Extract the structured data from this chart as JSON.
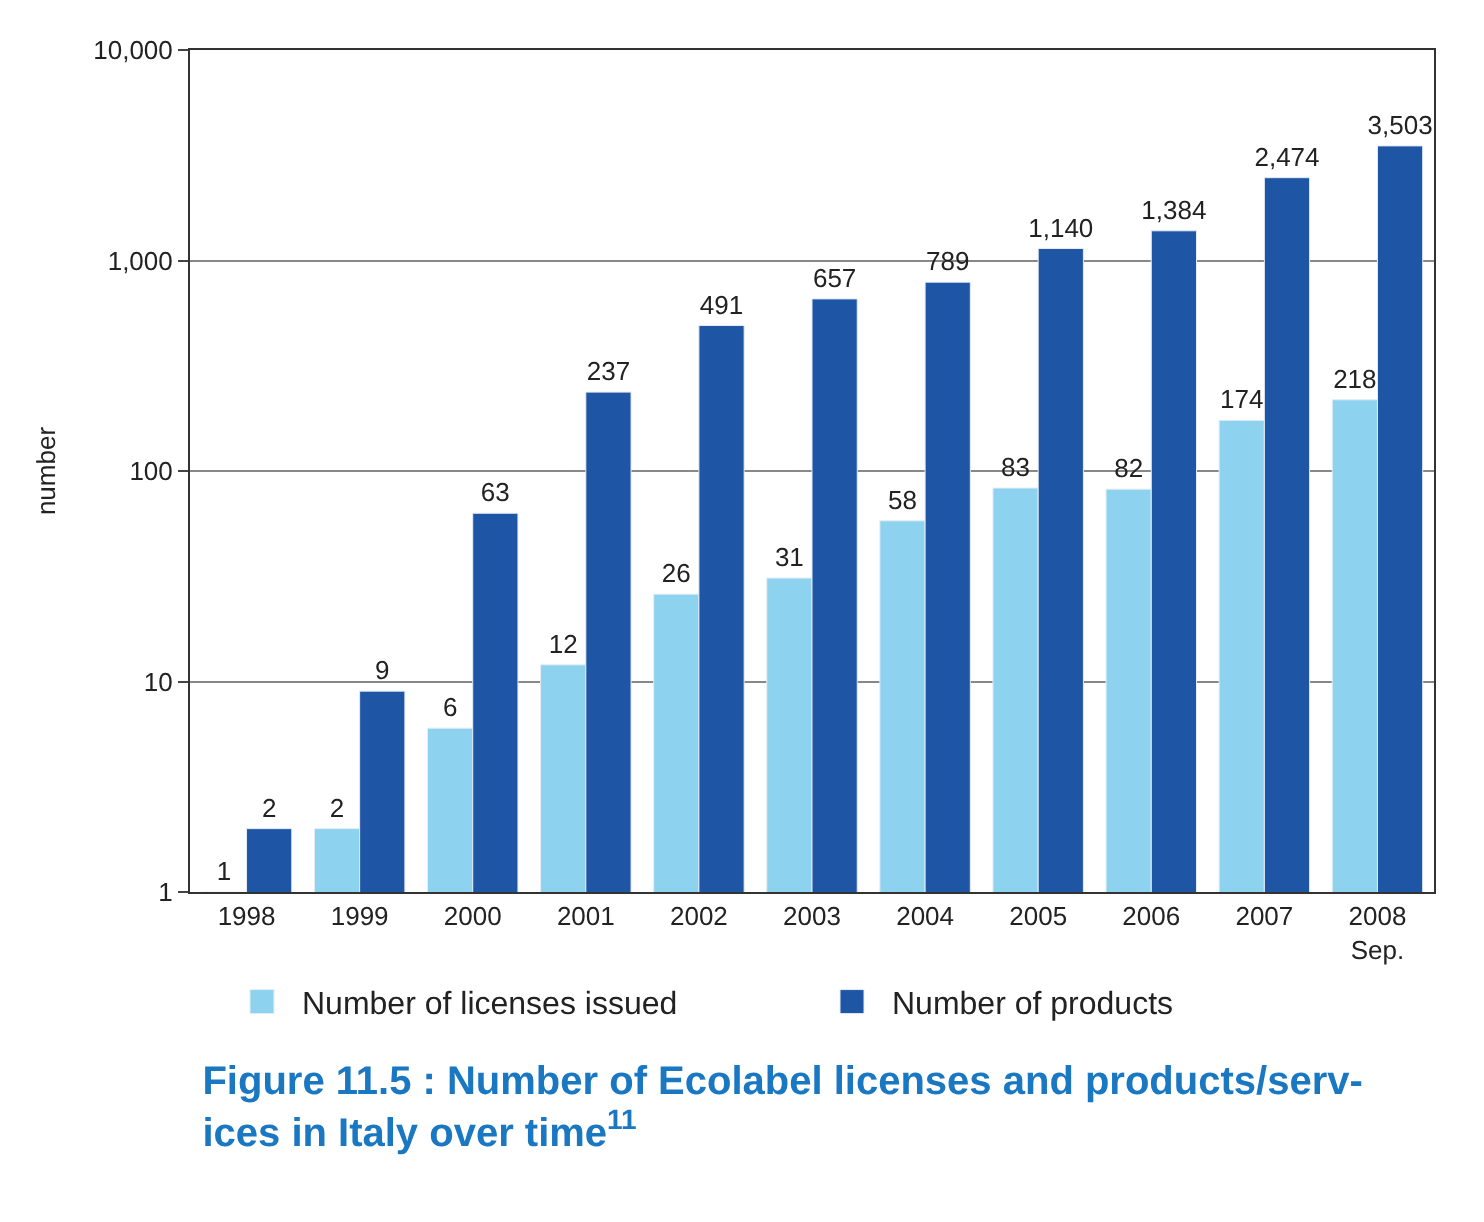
{
  "chart_data": {
    "type": "bar",
    "title": "Figure 11.5 : Number of Ecolabel licenses and products/serv-\nices in Italy over time$^{11}$",
    "ylabel": "number",
    "categories": [
      "1998",
      "1999",
      "2000",
      "2001",
      "2002",
      "2003",
      "2004",
      "2005",
      "2006",
      "2007",
      "2008\nSep."
    ],
    "series": [
      {
        "name": "Number of licenses issued",
        "color": "#8dd3ef",
        "values": [
          1,
          2,
          6,
          12,
          26,
          31,
          58,
          83,
          82,
          174,
          218
        ],
        "value_labels": [
          "1",
          "2",
          "6",
          "12",
          "26",
          "31",
          "58",
          "83",
          "82",
          "174",
          "218"
        ]
      },
      {
        "name": "Number of products",
        "color": "#1f55a5",
        "values": [
          2,
          9,
          63,
          237,
          491,
          657,
          789,
          1140,
          1384,
          2474,
          3503
        ],
        "value_labels": [
          "2",
          "9",
          "63",
          "237",
          "491",
          "657",
          "789",
          "1,140",
          "1,384",
          "2,474",
          "3,503"
        ]
      }
    ],
    "log": "y",
    "ylim": [
      1,
      10000
    ],
    "yticks": [
      1,
      10,
      100,
      {
        "value": 1000,
        "label": "1,000"
      },
      {
        "value": 10000,
        "label": "10,000"
      }
    ],
    "grid": "y",
    "legend": "bottom"
  }
}
